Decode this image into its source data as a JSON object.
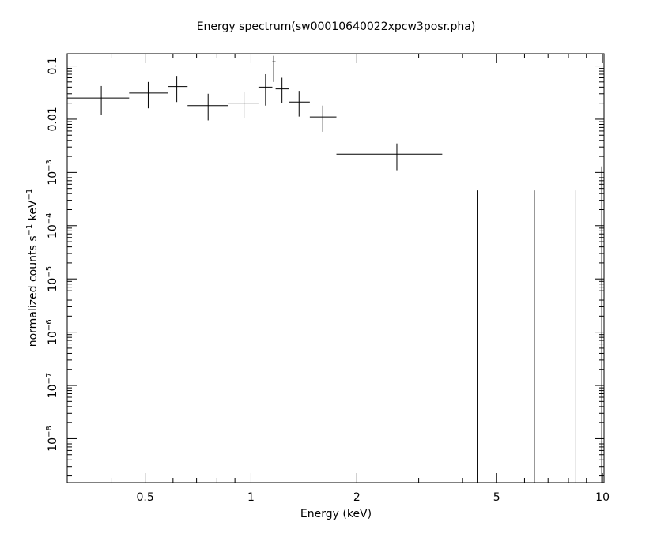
{
  "chart_data": {
    "type": "scatter",
    "title": "Energy spectrum(sw00010640022xpcw3posr.pha)",
    "xlabel": "Energy (keV)",
    "ylabel_main": "normalized counts s",
    "ylabel_exp1": "−1",
    "ylabel_mid": " keV",
    "ylabel_exp2": "−1",
    "xscale": "log",
    "yscale": "log",
    "xlim": [
      0.3,
      10.1
    ],
    "ylim": [
      1.5e-09,
      0.17
    ],
    "grid": false,
    "x_ticks": [
      {
        "value": 0.5,
        "label": "0.5"
      },
      {
        "value": 1,
        "label": "1"
      },
      {
        "value": 2,
        "label": "2"
      },
      {
        "value": 5,
        "label": "5"
      },
      {
        "value": 10,
        "label": "10"
      }
    ],
    "y_ticks": [
      {
        "value": 0.1,
        "base": "0.1",
        "exp": ""
      },
      {
        "value": 0.01,
        "base": "0.01",
        "exp": ""
      },
      {
        "value": 0.001,
        "base": "10",
        "exp": "−3"
      },
      {
        "value": 0.0001,
        "base": "10",
        "exp": "−4"
      },
      {
        "value": 1e-05,
        "base": "10",
        "exp": "−5"
      },
      {
        "value": 1e-06,
        "base": "10",
        "exp": "−6"
      },
      {
        "value": 1e-07,
        "base": "10",
        "exp": "−7"
      },
      {
        "value": 1e-08,
        "base": "10",
        "exp": "−8"
      }
    ],
    "points": [
      {
        "x": 0.375,
        "xlo": 0.3,
        "xhi": 0.45,
        "y": 0.025,
        "ylo": 0.012,
        "yhi": 0.042
      },
      {
        "x": 0.51,
        "xlo": 0.45,
        "xhi": 0.58,
        "y": 0.031,
        "ylo": 0.016,
        "yhi": 0.05
      },
      {
        "x": 0.615,
        "xlo": 0.58,
        "xhi": 0.66,
        "y": 0.041,
        "ylo": 0.021,
        "yhi": 0.065
      },
      {
        "x": 0.755,
        "xlo": 0.66,
        "xhi": 0.86,
        "y": 0.018,
        "ylo": 0.0095,
        "yhi": 0.03
      },
      {
        "x": 0.955,
        "xlo": 0.86,
        "xhi": 1.05,
        "y": 0.02,
        "ylo": 0.0105,
        "yhi": 0.032
      },
      {
        "x": 1.1,
        "xlo": 1.05,
        "xhi": 1.15,
        "y": 0.04,
        "ylo": 0.018,
        "yhi": 0.07
      },
      {
        "x": 1.16,
        "xlo": 1.15,
        "xhi": 1.175,
        "y": 0.12,
        "ylo": 0.05,
        "yhi": 0.155
      },
      {
        "x": 1.225,
        "xlo": 1.175,
        "xhi": 1.28,
        "y": 0.037,
        "ylo": 0.02,
        "yhi": 0.06
      },
      {
        "x": 1.37,
        "xlo": 1.28,
        "xhi": 1.47,
        "y": 0.021,
        "ylo": 0.0112,
        "yhi": 0.034
      },
      {
        "x": 1.6,
        "xlo": 1.47,
        "xhi": 1.75,
        "y": 0.011,
        "ylo": 0.0058,
        "yhi": 0.018
      },
      {
        "x": 2.6,
        "xlo": 1.75,
        "xhi": 3.5,
        "y": 0.0022,
        "ylo": 0.0011,
        "yhi": 0.0035
      }
    ],
    "upper_limits": [
      {
        "x": 4.4,
        "ytop": 0.00046
      },
      {
        "x": 6.4,
        "ytop": 0.00046
      },
      {
        "x": 8.4,
        "ytop": 0.00046
      },
      {
        "x": 9.95,
        "ytop": 0.0013
      }
    ]
  }
}
